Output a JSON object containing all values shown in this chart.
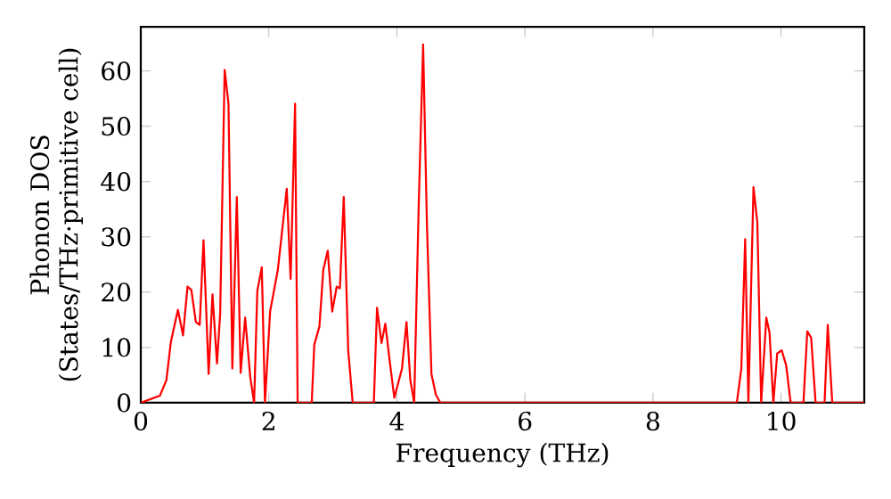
{
  "chart_data": {
    "type": "line",
    "xlabel": "Frequency (THz)",
    "ylabel": "Phonon DOS (States/THz·primitive cell)",
    "xlim": [
      0,
      11.3
    ],
    "ylim": [
      0,
      68
    ],
    "xticks": [
      0,
      2,
      4,
      6,
      8,
      10
    ],
    "yticks": [
      0,
      10,
      20,
      30,
      40,
      50,
      60
    ],
    "marker": "none",
    "line_style": "solid",
    "series": [
      {
        "color": "#ff0000",
        "x": [
          0,
          0.3,
          0.4,
          0.47,
          0.58,
          0.66,
          0.73,
          0.79,
          0.86,
          0.92,
          0.98,
          1.06,
          1.12,
          1.19,
          1.24,
          1.31,
          1.37,
          1.43,
          1.5,
          1.56,
          1.63,
          1.71,
          1.77,
          1.82,
          1.89,
          1.94,
          2.02,
          2.14,
          2.28,
          2.34,
          2.41,
          2.45,
          2.67,
          2.71,
          2.79,
          2.85,
          2.92,
          2.99,
          3.06,
          3.11,
          3.17,
          3.24,
          3.31,
          3.64,
          3.69,
          3.76,
          3.82,
          3.89,
          3.96,
          4.08,
          4.15,
          4.21,
          4.27,
          4.34,
          4.41,
          4.47,
          4.54,
          4.61,
          4.68,
          9.31,
          9.38,
          9.44,
          9.49,
          9.57,
          9.63,
          9.69,
          9.77,
          9.82,
          9.88,
          9.94,
          10.01,
          10.08,
          10.15,
          10.35,
          10.41,
          10.47,
          10.54,
          10.68,
          10.73,
          10.8,
          11.3
        ],
        "values": [
          0,
          1.3,
          4.1,
          11,
          16.8,
          12.2,
          21,
          20.4,
          14.6,
          14.1,
          29.4,
          5.2,
          19.6,
          7.1,
          16.1,
          60.2,
          54.1,
          6.2,
          37.2,
          5.4,
          15.4,
          4.6,
          0,
          20.2,
          24.5,
          0,
          16.5,
          24,
          38.7,
          22.4,
          54.1,
          0,
          0,
          10.5,
          13.8,
          24,
          27.5,
          16.5,
          21,
          20.7,
          37.2,
          9.5,
          0,
          0,
          17.2,
          10.8,
          14.3,
          7.3,
          0.9,
          6.2,
          14.6,
          4.1,
          0,
          35.3,
          64.8,
          32,
          5.2,
          1.4,
          0,
          0,
          6.2,
          29.6,
          0,
          39,
          32.6,
          0,
          15.4,
          12.7,
          0,
          8.9,
          9.5,
          6.8,
          0,
          0,
          12.9,
          11.8,
          0,
          0,
          14.1,
          0,
          0
        ]
      }
    ]
  }
}
